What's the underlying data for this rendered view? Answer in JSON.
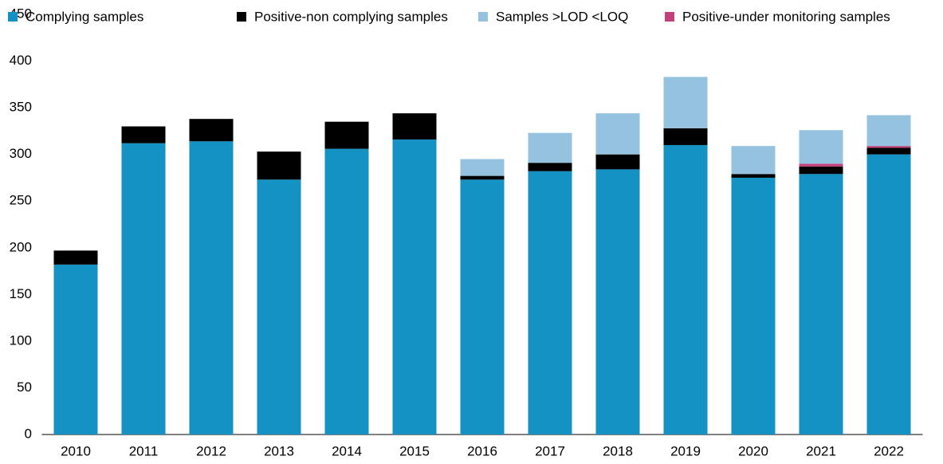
{
  "chart_data": {
    "type": "stacked-bar",
    "categories": [
      "2010",
      "2011",
      "2012",
      "2013",
      "2014",
      "2015",
      "2016",
      "2017",
      "2018",
      "2019",
      "2020",
      "2021",
      "2022"
    ],
    "series": [
      {
        "name": "Complying samples",
        "color": "#1592c4",
        "values": [
          182,
          312,
          314,
          273,
          306,
          316,
          273,
          282,
          284,
          310,
          275,
          279,
          300
        ]
      },
      {
        "name": "Positive-non complying samples",
        "color": "#000000",
        "values": [
          15,
          18,
          24,
          30,
          29,
          28,
          4,
          9,
          16,
          18,
          4,
          8,
          7
        ]
      },
      {
        "name": "Samples >LOD <LOQ",
        "color": "#95c3df",
        "values": [
          0,
          0,
          0,
          0,
          0,
          0,
          18,
          32,
          44,
          55,
          30,
          36,
          33
        ]
      },
      {
        "name": "Positive-under monitoring samples",
        "color": "#c0427a",
        "values": [
          0,
          0,
          0,
          0,
          0,
          0,
          0,
          0,
          0,
          0,
          0,
          3,
          2
        ]
      }
    ],
    "ylim": [
      0,
      450
    ],
    "yticks": [
      0,
      50,
      100,
      150,
      200,
      250,
      300,
      350,
      400,
      450
    ],
    "grid": false
  }
}
